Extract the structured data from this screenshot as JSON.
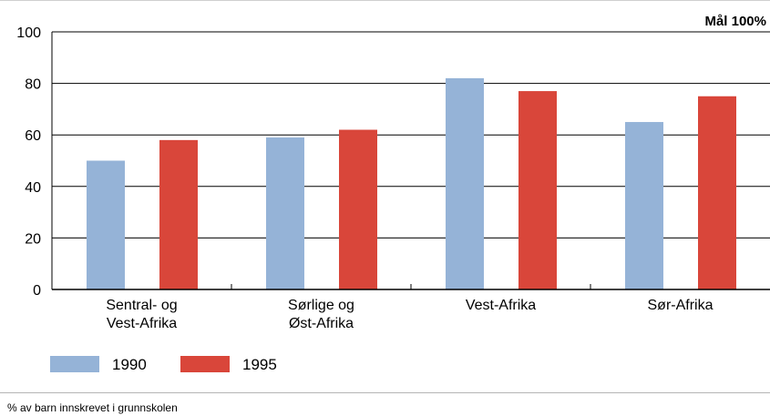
{
  "chart_data": {
    "type": "bar",
    "title": "",
    "goal_label": "Mål 100%",
    "categories": [
      [
        "Sentral- og",
        "Vest-Afrika"
      ],
      [
        "Sørlige og",
        "Øst-Afrika"
      ],
      [
        "Vest-Afrika"
      ],
      [
        "Sør-Afrika"
      ]
    ],
    "series": [
      {
        "name": "1990",
        "color": "#95b3d7",
        "values": [
          50,
          59,
          82,
          65
        ]
      },
      {
        "name": "1995",
        "color": "#d9463a",
        "values": [
          58,
          62,
          77,
          75
        ]
      }
    ],
    "ylim": [
      0,
      100
    ],
    "yticks": [
      0,
      20,
      40,
      60,
      80,
      100
    ],
    "grid": true,
    "legend_position": "bottom-left",
    "footnote": "% av barn innskrevet i grunnskolen"
  }
}
